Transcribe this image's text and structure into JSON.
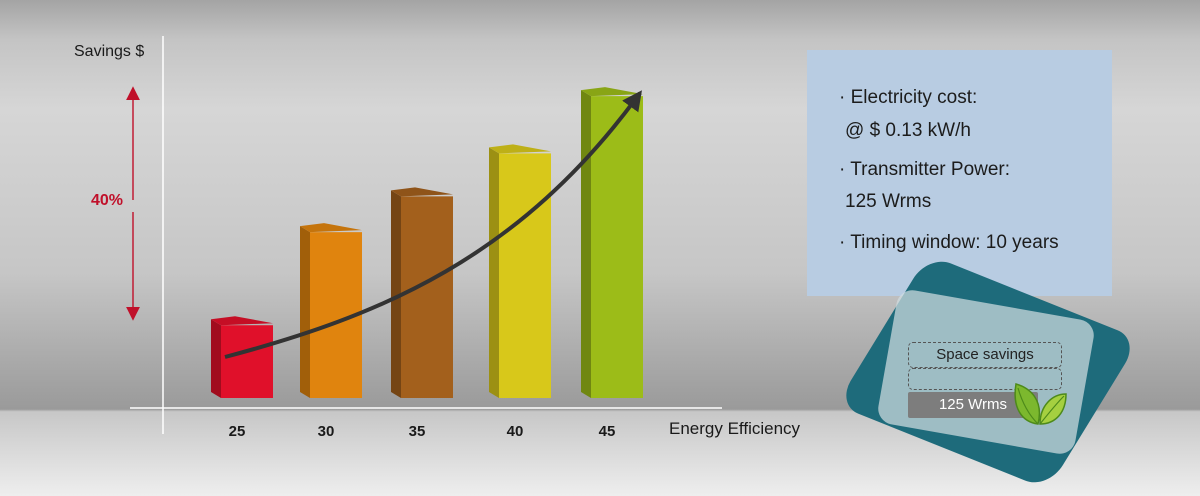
{
  "chart_data": {
    "type": "bar",
    "categories": [
      "25",
      "30",
      "35",
      "40",
      "45"
    ],
    "values": [
      22,
      48,
      58,
      70,
      86
    ],
    "ylim": [
      0,
      100
    ],
    "xlabel": "Energy Efficiency",
    "ylabel": "Savings $",
    "colors": [
      "#e0102a",
      "#e0840e",
      "#a3601c",
      "#d8c81a",
      "#9cbc18"
    ],
    "annotation_range": "40%",
    "trend_arrow": true,
    "grid": false
  },
  "info": {
    "lines": [
      "· Electricity cost:",
      "@ $ 0.13 kW/h",
      "· Transmitter Power:",
      "125 Wrms",
      "· Timing window: 10 years"
    ]
  },
  "badge": {
    "space_label": "Space savings",
    "power_label": "125 Wrms",
    "accent": "#1e6b7b",
    "icon": "leaf-icon"
  }
}
